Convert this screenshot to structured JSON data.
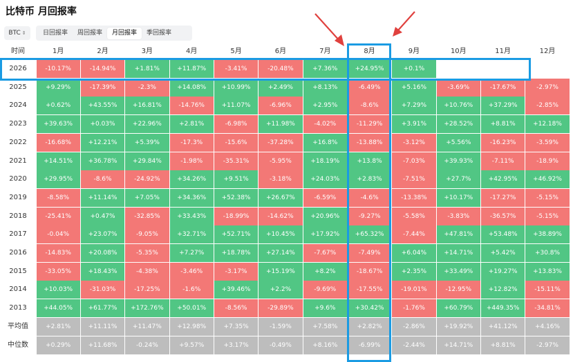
{
  "page": {
    "title": "比特币 月回报率"
  },
  "asset_select": {
    "value": "BTC"
  },
  "tabs": [
    {
      "label": "日回报率",
      "active": false
    },
    {
      "label": "周回报率",
      "active": false
    },
    {
      "label": "月回报率",
      "active": true
    },
    {
      "label": "季回报率",
      "active": false
    }
  ],
  "table": {
    "corner_label": "时间",
    "months": [
      "1月",
      "2月",
      "3月",
      "4月",
      "5月",
      "6月",
      "7月",
      "8月",
      "9月",
      "10月",
      "11月",
      "12月"
    ],
    "rows": [
      {
        "year": "2026",
        "values": [
          "-10.17%",
          "-14.94%",
          "+1.81%",
          "+11.87%",
          "-3.41%",
          "-20.48%",
          "+7.36%",
          "+24.95%",
          "+0.1%",
          "",
          "",
          ""
        ]
      },
      {
        "year": "2025",
        "values": [
          "+9.29%",
          "-17.39%",
          "-2.3%",
          "+14.08%",
          "+10.99%",
          "+2.49%",
          "+8.13%",
          "-6.49%",
          "+5.16%",
          "-3.69%",
          "-17.67%",
          "-2.97%"
        ]
      },
      {
        "year": "2024",
        "values": [
          "+0.62%",
          "+43.55%",
          "+16.81%",
          "-14.76%",
          "+11.07%",
          "-6.96%",
          "+2.95%",
          "-8.6%",
          "+7.29%",
          "+10.76%",
          "+37.29%",
          "-2.85%"
        ]
      },
      {
        "year": "2023",
        "values": [
          "+39.63%",
          "+0.03%",
          "+22.96%",
          "+2.81%",
          "-6.98%",
          "+11.98%",
          "-4.02%",
          "-11.29%",
          "+3.91%",
          "+28.52%",
          "+8.81%",
          "+12.18%"
        ]
      },
      {
        "year": "2022",
        "values": [
          "-16.68%",
          "+12.21%",
          "+5.39%",
          "-17.3%",
          "-15.6%",
          "-37.28%",
          "+16.8%",
          "-13.88%",
          "-3.12%",
          "+5.56%",
          "-16.23%",
          "-3.59%"
        ]
      },
      {
        "year": "2021",
        "values": [
          "+14.51%",
          "+36.78%",
          "+29.84%",
          "-1.98%",
          "-35.31%",
          "-5.95%",
          "+18.19%",
          "+13.8%",
          "-7.03%",
          "+39.93%",
          "-7.11%",
          "-18.9%"
        ]
      },
      {
        "year": "2020",
        "values": [
          "+29.95%",
          "-8.6%",
          "-24.92%",
          "+34.26%",
          "+9.51%",
          "-3.18%",
          "+24.03%",
          "+2.83%",
          "-7.51%",
          "+27.7%",
          "+42.95%",
          "+46.92%"
        ]
      },
      {
        "year": "2019",
        "values": [
          "-8.58%",
          "+11.14%",
          "+7.05%",
          "+34.36%",
          "+52.38%",
          "+26.67%",
          "-6.59%",
          "-4.6%",
          "-13.38%",
          "+10.17%",
          "-17.27%",
          "-5.15%"
        ]
      },
      {
        "year": "2018",
        "values": [
          "-25.41%",
          "+0.47%",
          "-32.85%",
          "+33.43%",
          "-18.99%",
          "-14.62%",
          "+20.96%",
          "-9.27%",
          "-5.58%",
          "-3.83%",
          "-36.57%",
          "-5.15%"
        ]
      },
      {
        "year": "2017",
        "values": [
          "-0.04%",
          "+23.07%",
          "-9.05%",
          "+32.71%",
          "+52.71%",
          "+10.45%",
          "+17.92%",
          "+65.32%",
          "-7.44%",
          "+47.81%",
          "+53.48%",
          "+38.89%"
        ]
      },
      {
        "year": "2016",
        "values": [
          "-14.83%",
          "+20.08%",
          "-5.35%",
          "+7.27%",
          "+18.78%",
          "+27.14%",
          "-7.67%",
          "-7.49%",
          "+6.04%",
          "+14.71%",
          "+5.42%",
          "+30.8%"
        ]
      },
      {
        "year": "2015",
        "values": [
          "-33.05%",
          "+18.43%",
          "-4.38%",
          "-3.46%",
          "-3.17%",
          "+15.19%",
          "+8.2%",
          "-18.67%",
          "+2.35%",
          "+33.49%",
          "+19.27%",
          "+13.83%"
        ]
      },
      {
        "year": "2014",
        "values": [
          "+10.03%",
          "-31.03%",
          "-17.25%",
          "-1.6%",
          "+39.46%",
          "+2.2%",
          "-9.69%",
          "-17.55%",
          "-19.01%",
          "-12.95%",
          "+12.82%",
          "-15.11%"
        ]
      },
      {
        "year": "2013",
        "values": [
          "+44.05%",
          "+61.77%",
          "+172.76%",
          "+50.01%",
          "-8.56%",
          "-29.89%",
          "+9.6%",
          "+30.42%",
          "-1.76%",
          "+60.79%",
          "+449.35%",
          "-34.81%"
        ]
      }
    ],
    "stats": [
      {
        "label": "平均值",
        "values": [
          "+2.81%",
          "+11.11%",
          "+11.47%",
          "+12.98%",
          "+7.35%",
          "-1.59%",
          "+7.58%",
          "+2.82%",
          "-2.86%",
          "+19.92%",
          "+41.12%",
          "+4.16%"
        ]
      },
      {
        "label": "中位数",
        "values": [
          "+0.29%",
          "+11.68%",
          "-0.24%",
          "+9.57%",
          "+3.17%",
          "-0.49%",
          "+8.16%",
          "-6.99%",
          "-2.44%",
          "+14.71%",
          "+8.81%",
          "-2.97%"
        ]
      }
    ]
  },
  "annotation": {
    "highlighted_month": "8月",
    "highlighted_year": "2026"
  },
  "colors": {
    "positive": "#51c684",
    "negative": "#f37876",
    "stat": "#bdbdbd",
    "highlight": "#1a9be3",
    "arrow": "#e0413e"
  }
}
